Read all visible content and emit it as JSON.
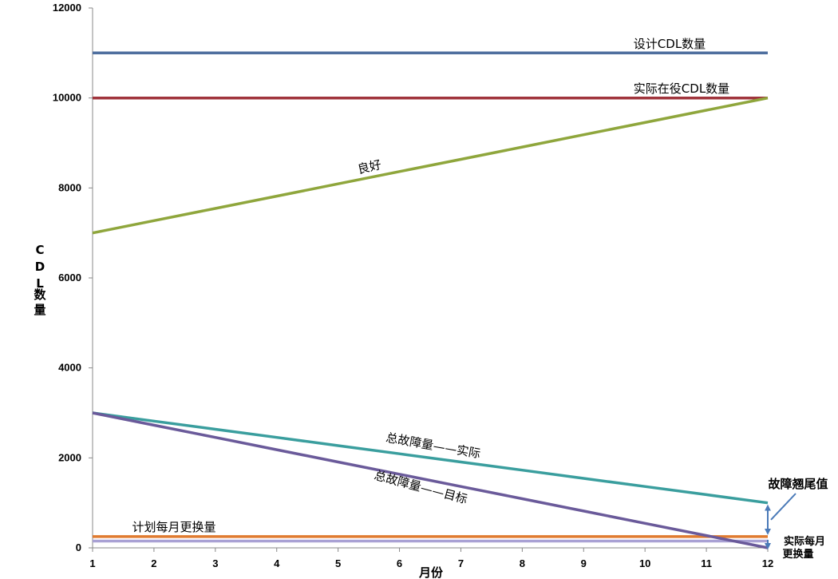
{
  "chart_data": {
    "type": "line",
    "x": [
      1,
      2,
      3,
      4,
      5,
      6,
      7,
      8,
      9,
      10,
      11,
      12
    ],
    "xlim": [
      1,
      12
    ],
    "ylim": [
      0,
      12000
    ],
    "yticks": [
      0,
      2000,
      4000,
      6000,
      8000,
      10000,
      12000
    ],
    "xticks": [
      1,
      2,
      3,
      4,
      5,
      6,
      7,
      8,
      9,
      10,
      11,
      12
    ],
    "xlabel": "月份",
    "ylabel_chars": [
      "C",
      "D",
      "L",
      "数",
      "量"
    ],
    "grid": false,
    "series": [
      {
        "name": "设计CDL数量",
        "color": "#4f6f9f",
        "values": [
          11000,
          11000,
          11000,
          11000,
          11000,
          11000,
          11000,
          11000,
          11000,
          11000,
          11000,
          11000
        ]
      },
      {
        "name": "实际在役CDL数量",
        "color": "#a0343c",
        "values": [
          10000,
          10000,
          10000,
          10000,
          10000,
          10000,
          10000,
          10000,
          10000,
          10000,
          10000,
          10000
        ]
      },
      {
        "name": "良好",
        "color": "#8fa63c",
        "values": [
          7000,
          7273,
          7545,
          7818,
          8091,
          8364,
          8636,
          8909,
          9182,
          9455,
          9727,
          10000
        ]
      },
      {
        "name": "总故障量——实际",
        "color": "#3a9e9e",
        "values": [
          3000,
          2818,
          2636,
          2455,
          2273,
          2091,
          1909,
          1727,
          1545,
          1364,
          1182,
          1000
        ]
      },
      {
        "name": "总故障量——目标",
        "color": "#6a5a9a",
        "values": [
          3000,
          2727,
          2455,
          2182,
          1909,
          1636,
          1364,
          1091,
          818,
          545,
          273,
          0
        ]
      },
      {
        "name": "计划每月更换量",
        "color": "#e07b30",
        "values": [
          250,
          250,
          250,
          250,
          250,
          250,
          250,
          250,
          250,
          250,
          250,
          250
        ]
      },
      {
        "name": "",
        "color": "#a9a1d4",
        "values": [
          150,
          150,
          150,
          150,
          150,
          150,
          150,
          150,
          150,
          150,
          150,
          150
        ]
      }
    ],
    "annotations": {
      "tail_value": "故障翘尾值",
      "actual_monthly_line1": "实际每月",
      "actual_monthly_line2": "更换量",
      "arrow_color": "#4a7ab8"
    }
  }
}
